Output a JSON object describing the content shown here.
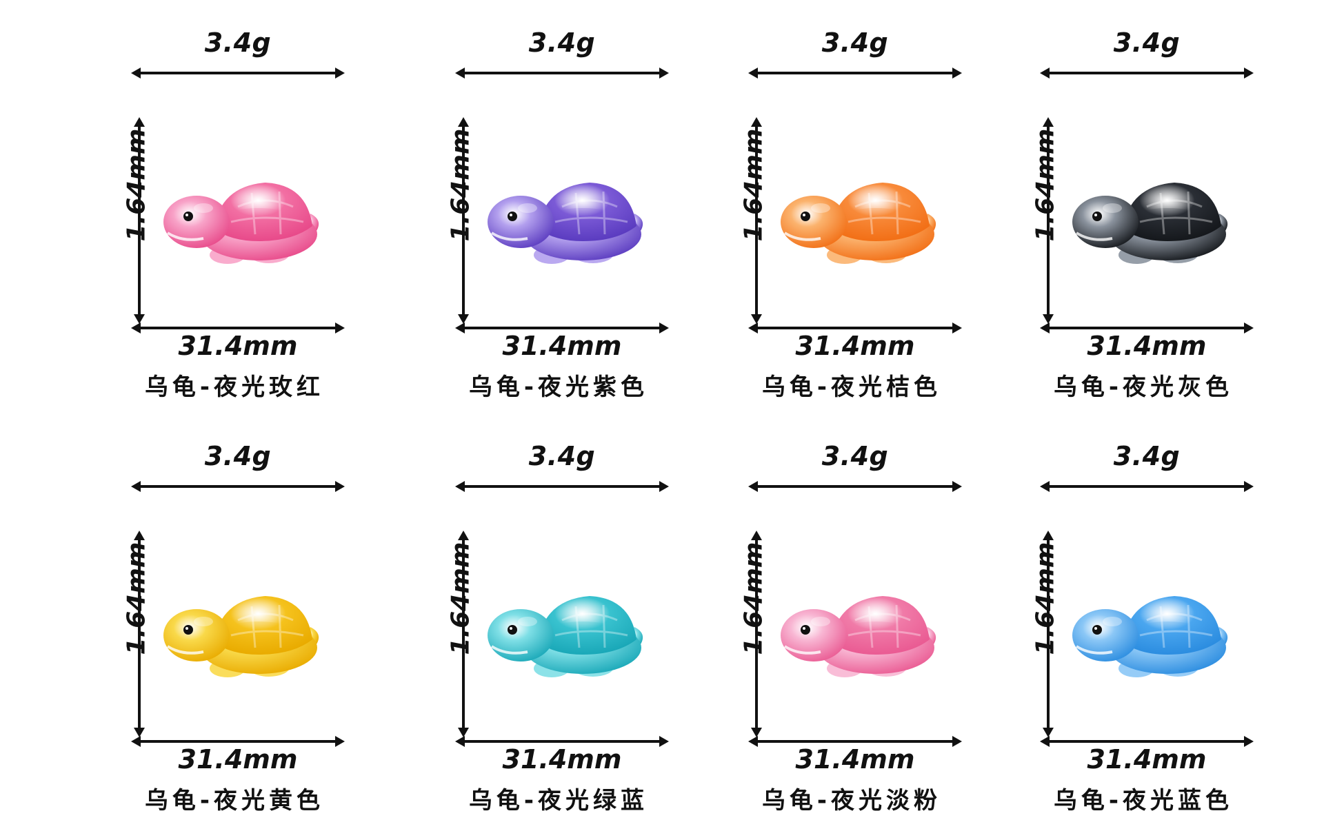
{
  "cards": [
    {
      "weight": "3.4g",
      "height": "1.64mm",
      "length": "31.4mm",
      "name": "乌龟-夜光玫红",
      "shell": "#f26fa3",
      "body": "#f8a3c8",
      "dark": "#e84a8a"
    },
    {
      "weight": "3.4g",
      "height": "1.64mm",
      "length": "31.4mm",
      "name": "乌龟-夜光紫色",
      "shell": "#7b5ad6",
      "body": "#b3a0ee",
      "dark": "#5b3cc0"
    },
    {
      "weight": "3.4g",
      "height": "1.64mm",
      "length": "31.4mm",
      "name": "乌龟-夜光桔色",
      "shell": "#f88a3a",
      "body": "#fbb36e",
      "dark": "#f26f16"
    },
    {
      "weight": "3.4g",
      "height": "1.64mm",
      "length": "31.4mm",
      "name": "乌龟-夜光灰色",
      "shell": "#2a2e35",
      "body": "#8b939e",
      "dark": "#15181c"
    },
    {
      "weight": "3.4g",
      "height": "1.64mm",
      "length": "31.4mm",
      "name": "乌龟-夜光黄色",
      "shell": "#f5c21d",
      "body": "#f9d94a",
      "dark": "#e9ab00"
    },
    {
      "weight": "3.4g",
      "height": "1.64mm",
      "length": "31.4mm",
      "name": "乌龟-夜光绿蓝",
      "shell": "#39c2cf",
      "body": "#7fdfe6",
      "dark": "#1aa8b8"
    },
    {
      "weight": "3.4g",
      "height": "1.64mm",
      "length": "31.4mm",
      "name": "乌龟-夜光淡粉",
      "shell": "#f07ba8",
      "body": "#f8b6d3",
      "dark": "#ea5b93"
    },
    {
      "weight": "3.4g",
      "height": "1.64mm",
      "length": "31.4mm",
      "name": "乌龟-夜光蓝色",
      "shell": "#4aa6ef",
      "body": "#8bc7f6",
      "dark": "#2c8de0"
    }
  ]
}
